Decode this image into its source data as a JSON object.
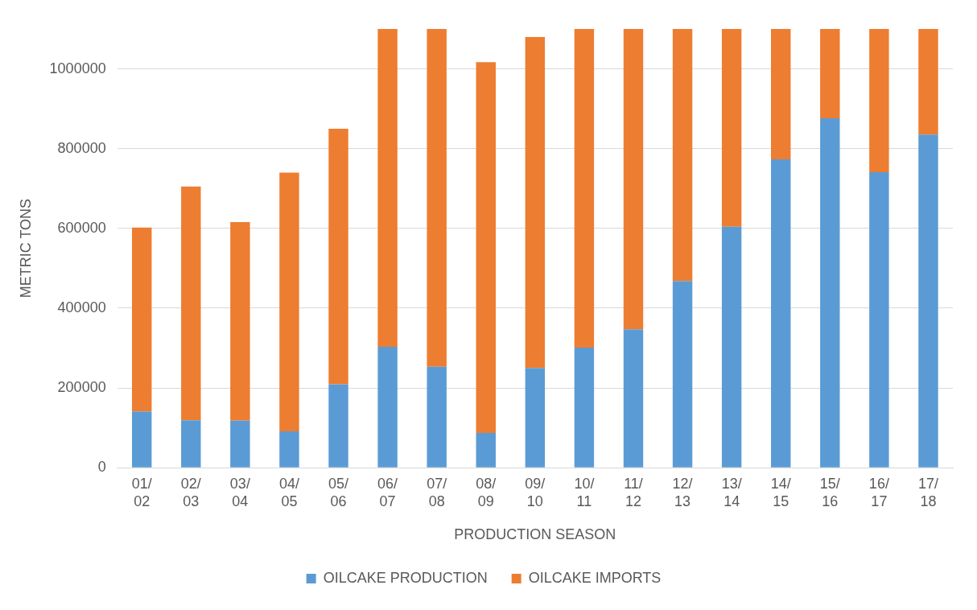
{
  "chart_data": {
    "type": "bar",
    "stacked": true,
    "xlabel": "PRODUCTION SEASON",
    "ylabel": "METRIC TONS",
    "categories": [
      "01/02",
      "02/03",
      "03/04",
      "04/05",
      "05/06",
      "06/07",
      "07/08",
      "08/09",
      "09/10",
      "10/11",
      "11/12",
      "12/13",
      "13/14",
      "14/15",
      "15/16",
      "16/17",
      "17/18"
    ],
    "series": [
      {
        "name": "OILCAKE PRODUCTION",
        "color": "#5b9bd5",
        "values": [
          141000,
          119000,
          118000,
          91000,
          209000,
          303000,
          253000,
          87000,
          250000,
          301000,
          347000,
          468000,
          604000,
          773000,
          876000,
          741000,
          835000
        ]
      },
      {
        "name": "OILCAKE IMPORTS",
        "color": "#ed7d31",
        "values": [
          461000,
          586000,
          498000,
          649000,
          641000,
          797000,
          847000,
          930000,
          830000,
          799000,
          753000,
          632000,
          496000,
          327000,
          224000,
          359000,
          265000
        ]
      }
    ],
    "ylim": [
      0,
      1100000
    ],
    "yticks": [
      0,
      200000,
      400000,
      600000,
      800000,
      1000000
    ],
    "grid": "y",
    "legend": "bottom"
  }
}
